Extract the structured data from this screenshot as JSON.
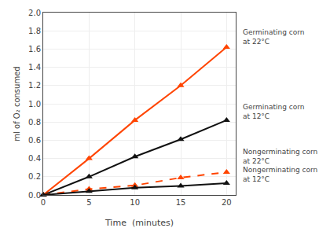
{
  "chart_data": {
    "type": "line",
    "xlabel": "Time  (minutes)",
    "ylabel": "ml of O₂ consumed",
    "xlim": [
      0,
      21
    ],
    "ylim": [
      0,
      2.0
    ],
    "xticks": [
      0,
      5,
      10,
      15,
      20
    ],
    "yticks": [
      {
        "value": 0,
        "label": "0.0"
      },
      0.2,
      0.4,
      0.6,
      0.8,
      {
        "value": 1,
        "label": "1.0"
      },
      1.2,
      1.4,
      1.6,
      1.8,
      {
        "value": 2,
        "label": "2.0"
      }
    ],
    "grid": true,
    "marker": "triangle-up",
    "series": [
      {
        "name": "Germinating corn\nat 22°C",
        "color": "#ff4400",
        "line_style": "solid",
        "x": [
          0,
          5,
          10,
          15,
          20
        ],
        "values": [
          0.0,
          0.4,
          0.82,
          1.2,
          1.62
        ]
      },
      {
        "name": "Germinating corn\nat 12°C",
        "color": "#111111",
        "line_style": "solid",
        "x": [
          0,
          5,
          10,
          15,
          20
        ],
        "values": [
          0.0,
          0.2,
          0.42,
          0.61,
          0.82
        ]
      },
      {
        "name": "Nongerminating corn\nat 22°C",
        "color": "#ff4400",
        "line_style": "dash",
        "x": [
          0,
          5,
          10,
          15,
          20
        ],
        "values": [
          0.0,
          0.065,
          0.105,
          0.19,
          0.25
        ]
      },
      {
        "name": "Nongerminating corn\nat 12°C",
        "color": "#111111",
        "line_style": "solid",
        "x": [
          0,
          5,
          10,
          15,
          20
        ],
        "values": [
          0.0,
          0.04,
          0.08,
          0.1,
          0.13
        ]
      }
    ],
    "annotations": [
      {
        "text": "Germinating corn\nat 22°C",
        "y": 1.73
      },
      {
        "text": "Germinating corn\nat 12°C",
        "y": 0.91
      },
      {
        "text": "Nongerminating corn\nat 22°C",
        "y": 0.42
      },
      {
        "text": "Nongerminating corn\nat 12°C",
        "y": 0.22
      }
    ]
  }
}
